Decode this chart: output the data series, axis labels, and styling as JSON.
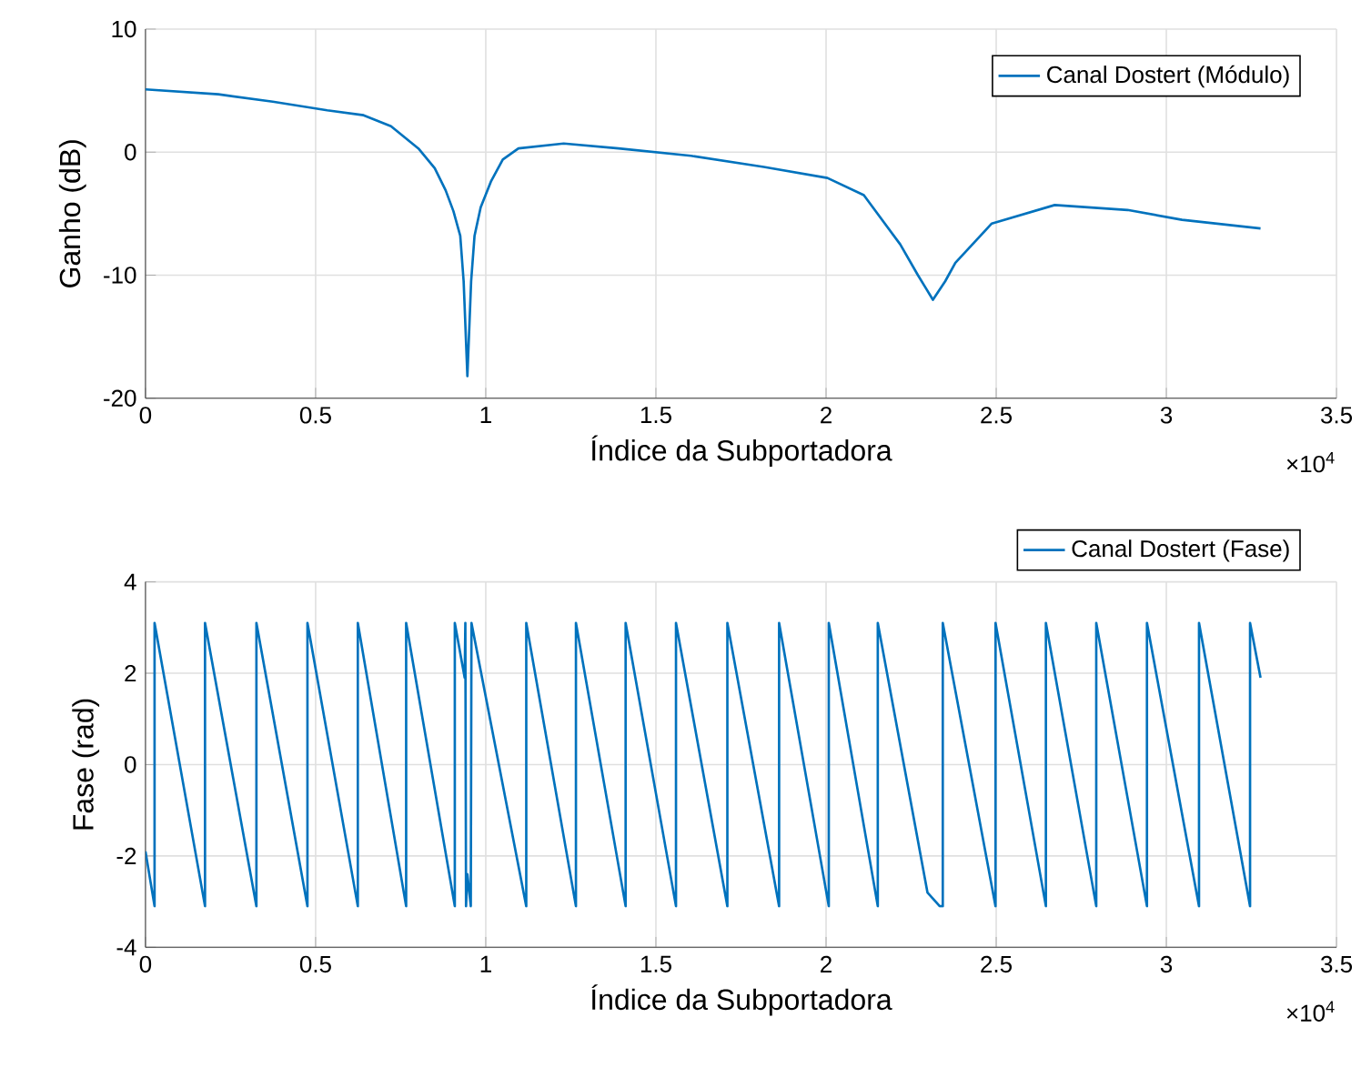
{
  "chart_data": [
    {
      "type": "line",
      "xlabel": "Índice da Subportadora",
      "ylabel": "Ganho (dB)",
      "annotations": [
        "×10$^{4}$"
      ],
      "x": [
        0,
        0.214,
        0.374,
        0.534,
        0.641,
        0.7215,
        0.802,
        0.85,
        0.882,
        0.905,
        0.925,
        0.935,
        0.946,
        0.957,
        0.967,
        0.985,
        1.015,
        1.05,
        1.096,
        1.229,
        1.39,
        1.603,
        1.817,
        2.004,
        2.111,
        2.218,
        2.27,
        2.314,
        2.35,
        2.38,
        2.487,
        2.672,
        2.886,
        3.046,
        3.2768
      ],
      "series": [
        {
          "name": "Canal Dostert (Módulo)",
          "color": "#0072bd",
          "values": [
            5.1,
            4.7,
            4.1,
            3.4,
            3.0,
            2.1,
            0.3,
            -1.3,
            -3.1,
            -4.8,
            -6.8,
            -10.5,
            -18.2,
            -10.5,
            -6.8,
            -4.5,
            -2.4,
            -0.6,
            0.3,
            0.7,
            0.3,
            -0.3,
            -1.2,
            -2.1,
            -3.5,
            -7.5,
            -10,
            -12,
            -10.5,
            -9,
            -5.8,
            -4.3,
            -4.7,
            -5.5,
            -6.2
          ]
        }
      ],
      "xlim": [
        0,
        3.5
      ],
      "ylim": [
        -20,
        10
      ],
      "xticks": [
        0,
        0.5,
        1,
        1.5,
        2,
        2.5,
        3,
        3.5
      ],
      "yticks": [
        -20,
        -10,
        0,
        10
      ],
      "grid": true,
      "legend": "top right"
    },
    {
      "type": "line",
      "xlabel": "Índice da Subportadora",
      "ylabel": "Fase (rad)",
      "annotations": [
        "×10$^{4}$"
      ],
      "x": [
        0,
        0.0267,
        0.0267,
        0.175,
        0.175,
        0.326,
        0.326,
        0.476,
        0.476,
        0.624,
        0.624,
        0.766,
        0.766,
        0.909,
        0.909,
        0.938,
        0.94,
        0.942,
        0.946,
        0.956,
        0.958,
        1.119,
        1.119,
        1.265,
        1.265,
        1.411,
        1.411,
        1.559,
        1.559,
        1.71,
        1.71,
        1.862,
        1.862,
        2.008,
        2.008,
        2.152,
        2.152,
        2.298,
        2.334,
        2.343,
        2.343,
        2.498,
        2.498,
        2.646,
        2.646,
        2.794,
        2.794,
        2.943,
        2.943,
        3.096,
        3.096,
        3.246,
        3.246,
        3.2768
      ],
      "series": [
        {
          "name": "Canal Dostert (Fase)",
          "color": "#0072bd",
          "values": [
            -1.9,
            -3.1,
            3.1,
            -3.1,
            3.1,
            -3.1,
            3.1,
            -3.1,
            3.1,
            -3.1,
            3.1,
            -3.1,
            3.1,
            -3.1,
            3.1,
            1.9,
            3.1,
            -3.1,
            -2.4,
            -3.1,
            3.1,
            -3.1,
            3.1,
            -3.1,
            3.1,
            -3.1,
            3.1,
            -3.1,
            3.1,
            -3.1,
            3.1,
            -3.1,
            3.1,
            -3.1,
            3.1,
            -3.1,
            3.1,
            -2.8,
            -3.1,
            -3.1,
            3.1,
            -3.1,
            3.1,
            -3.1,
            3.1,
            -3.1,
            3.1,
            -3.1,
            3.1,
            -3.1,
            3.1,
            -3.1,
            3.1,
            1.9
          ]
        }
      ],
      "xlim": [
        0,
        3.5
      ],
      "ylim": [
        -4,
        4
      ],
      "xticks": [
        0,
        0.5,
        1,
        1.5,
        2,
        2.5,
        3,
        3.5
      ],
      "yticks": [
        -4,
        -2,
        0,
        2,
        4
      ],
      "grid": true,
      "legend": "top right"
    }
  ]
}
